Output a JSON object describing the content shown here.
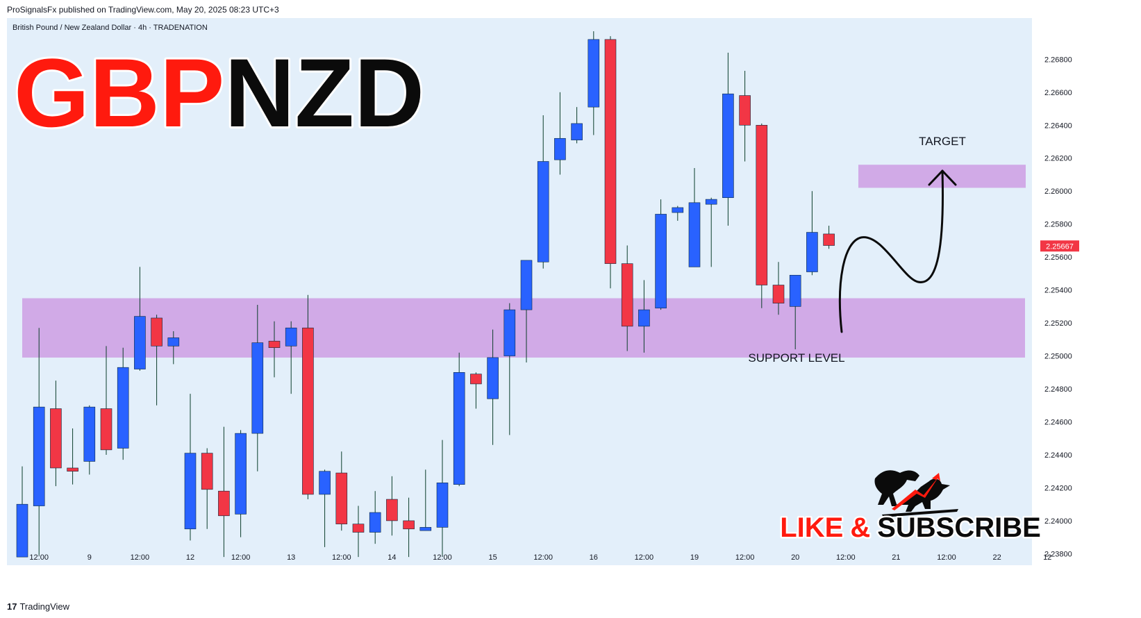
{
  "header": {
    "published": "ProSignalsFx published on TradingView.com, May 20, 2025 08:23 UTC+3"
  },
  "symbol": {
    "description": "British Pound / New Zealand Dollar · 4h · TRADENATION",
    "part1": "GBP",
    "part2": "NZD"
  },
  "price_label": "2.25667",
  "annotations": {
    "target": "TARGET",
    "support": "SUPPORT LEVEL",
    "cta_part1": "LIKE",
    "cta_amp": "&",
    "cta_part2": "SUBSCRIBE"
  },
  "footer": {
    "brand": "TradingView"
  },
  "colors": {
    "up": "#2962ff",
    "down": "#f23645",
    "zone": "#ce9ee3",
    "bg": "#e3effa",
    "price_tag": "#f23645"
  },
  "chart_data": {
    "type": "candlestick",
    "timeframe": "4h",
    "y_ticks": [
      2.238,
      2.24,
      2.242,
      2.244,
      2.246,
      2.248,
      2.25,
      2.252,
      2.254,
      2.256,
      2.258,
      2.26,
      2.262,
      2.264,
      2.266,
      2.268
    ],
    "y_tick_labels": [
      "2.23800",
      "2.24000",
      "2.24200",
      "2.24400",
      "2.24600",
      "2.24800",
      "2.25000",
      "2.25200",
      "2.25400",
      "2.25600",
      "2.25800",
      "2.26000",
      "2.26200",
      "2.26400",
      "2.26600",
      "2.26800"
    ],
    "ylim": [
      2.2373,
      2.2705
    ],
    "x_labels": [
      {
        "i": 1,
        "label": "12:00"
      },
      {
        "i": 4,
        "label": "9"
      },
      {
        "i": 7,
        "label": "12:00"
      },
      {
        "i": 10,
        "label": "12"
      },
      {
        "i": 13,
        "label": "12:00"
      },
      {
        "i": 16,
        "label": "13"
      },
      {
        "i": 19,
        "label": "12:00"
      },
      {
        "i": 22,
        "label": "14"
      },
      {
        "i": 25,
        "label": "12:00"
      },
      {
        "i": 28,
        "label": "15"
      },
      {
        "i": 31,
        "label": "12:00"
      },
      {
        "i": 34,
        "label": "16"
      },
      {
        "i": 37,
        "label": "12:00"
      },
      {
        "i": 40,
        "label": "19"
      },
      {
        "i": 43,
        "label": "12:00"
      },
      {
        "i": 46,
        "label": "20"
      },
      {
        "i": 49,
        "label": "12:00"
      },
      {
        "i": 52,
        "label": "21"
      },
      {
        "i": 55,
        "label": "12:00"
      },
      {
        "i": 58,
        "label": "22"
      },
      {
        "i": 61,
        "label": "12"
      }
    ],
    "candles": [
      {
        "o": 2.2378,
        "h": 2.2433,
        "l": 2.2378,
        "c": 2.241
      },
      {
        "o": 2.2409,
        "h": 2.2517,
        "l": 2.2379,
        "c": 2.2469
      },
      {
        "o": 2.2468,
        "h": 2.2485,
        "l": 2.2421,
        "c": 2.2432
      },
      {
        "o": 2.2432,
        "h": 2.2456,
        "l": 2.2422,
        "c": 2.243
      },
      {
        "o": 2.2436,
        "h": 2.247,
        "l": 2.2428,
        "c": 2.2469
      },
      {
        "o": 2.2468,
        "h": 2.2506,
        "l": 2.244,
        "c": 2.2443
      },
      {
        "o": 2.2444,
        "h": 2.2505,
        "l": 2.2437,
        "c": 2.2493
      },
      {
        "o": 2.2492,
        "h": 2.2554,
        "l": 2.2491,
        "c": 2.2524
      },
      {
        "o": 2.2523,
        "h": 2.2525,
        "l": 2.247,
        "c": 2.2506
      },
      {
        "o": 2.2506,
        "h": 2.2515,
        "l": 2.2495,
        "c": 2.2511
      },
      {
        "o": 2.2395,
        "h": 2.2477,
        "l": 2.2388,
        "c": 2.2441
      },
      {
        "o": 2.2441,
        "h": 2.2444,
        "l": 2.2395,
        "c": 2.2419
      },
      {
        "o": 2.2418,
        "h": 2.2457,
        "l": 2.2378,
        "c": 2.2403
      },
      {
        "o": 2.2404,
        "h": 2.2455,
        "l": 2.239,
        "c": 2.2453
      },
      {
        "o": 2.2453,
        "h": 2.2531,
        "l": 2.243,
        "c": 2.2508
      },
      {
        "o": 2.2509,
        "h": 2.2521,
        "l": 2.2487,
        "c": 2.2505
      },
      {
        "o": 2.2506,
        "h": 2.2521,
        "l": 2.2477,
        "c": 2.2517
      },
      {
        "o": 2.2517,
        "h": 2.2537,
        "l": 2.2413,
        "c": 2.2416
      },
      {
        "o": 2.2416,
        "h": 2.2431,
        "l": 2.2384,
        "c": 2.243
      },
      {
        "o": 2.2429,
        "h": 2.2442,
        "l": 2.2394,
        "c": 2.2398
      },
      {
        "o": 2.2398,
        "h": 2.2409,
        "l": 2.2378,
        "c": 2.2393
      },
      {
        "o": 2.2393,
        "h": 2.2418,
        "l": 2.2386,
        "c": 2.2405
      },
      {
        "o": 2.2413,
        "h": 2.2427,
        "l": 2.2391,
        "c": 2.24
      },
      {
        "o": 2.24,
        "h": 2.2414,
        "l": 2.2378,
        "c": 2.2395
      },
      {
        "o": 2.2394,
        "h": 2.2431,
        "l": 2.2394,
        "c": 2.2396
      },
      {
        "o": 2.2396,
        "h": 2.2449,
        "l": 2.2378,
        "c": 2.2423
      },
      {
        "o": 2.2422,
        "h": 2.2502,
        "l": 2.2421,
        "c": 2.249
      },
      {
        "o": 2.2489,
        "h": 2.249,
        "l": 2.2468,
        "c": 2.2483
      },
      {
        "o": 2.2474,
        "h": 2.2516,
        "l": 2.2446,
        "c": 2.2499
      },
      {
        "o": 2.25,
        "h": 2.2532,
        "l": 2.2452,
        "c": 2.2528
      },
      {
        "o": 2.2528,
        "h": 2.2558,
        "l": 2.2496,
        "c": 2.2558
      },
      {
        "o": 2.2557,
        "h": 2.2646,
        "l": 2.2553,
        "c": 2.2618
      },
      {
        "o": 2.2619,
        "h": 2.266,
        "l": 2.261,
        "c": 2.2632
      },
      {
        "o": 2.2631,
        "h": 2.2651,
        "l": 2.2629,
        "c": 2.2641
      },
      {
        "o": 2.2651,
        "h": 2.2697,
        "l": 2.2634,
        "c": 2.2692
      },
      {
        "o": 2.2692,
        "h": 2.2694,
        "l": 2.2541,
        "c": 2.2556
      },
      {
        "o": 2.2556,
        "h": 2.2567,
        "l": 2.2503,
        "c": 2.2518
      },
      {
        "o": 2.2518,
        "h": 2.2546,
        "l": 2.2502,
        "c": 2.2528
      },
      {
        "o": 2.2529,
        "h": 2.2595,
        "l": 2.2528,
        "c": 2.2586
      },
      {
        "o": 2.2587,
        "h": 2.2591,
        "l": 2.2582,
        "c": 2.259
      },
      {
        "o": 2.2554,
        "h": 2.2614,
        "l": 2.2554,
        "c": 2.2593
      },
      {
        "o": 2.2592,
        "h": 2.2596,
        "l": 2.2554,
        "c": 2.2595
      },
      {
        "o": 2.2596,
        "h": 2.2684,
        "l": 2.2579,
        "c": 2.2659
      },
      {
        "o": 2.2658,
        "h": 2.2673,
        "l": 2.2618,
        "c": 2.264
      },
      {
        "o": 2.264,
        "h": 2.2641,
        "l": 2.2529,
        "c": 2.2543
      },
      {
        "o": 2.2543,
        "h": 2.2557,
        "l": 2.2525,
        "c": 2.2532
      },
      {
        "o": 2.253,
        "h": 2.2549,
        "l": 2.2504,
        "c": 2.2549
      },
      {
        "o": 2.2551,
        "h": 2.26,
        "l": 2.2549,
        "c": 2.2575
      },
      {
        "o": 2.2574,
        "h": 2.2579,
        "l": 2.2565,
        "c": 2.2567
      }
    ],
    "zones": [
      {
        "label": "SUPPORT LEVEL",
        "y_from": 2.2499,
        "y_to": 2.2535
      },
      {
        "label": "TARGET",
        "y_from": 2.2602,
        "y_to": 2.2616
      }
    ],
    "last_price": 2.25667
  }
}
